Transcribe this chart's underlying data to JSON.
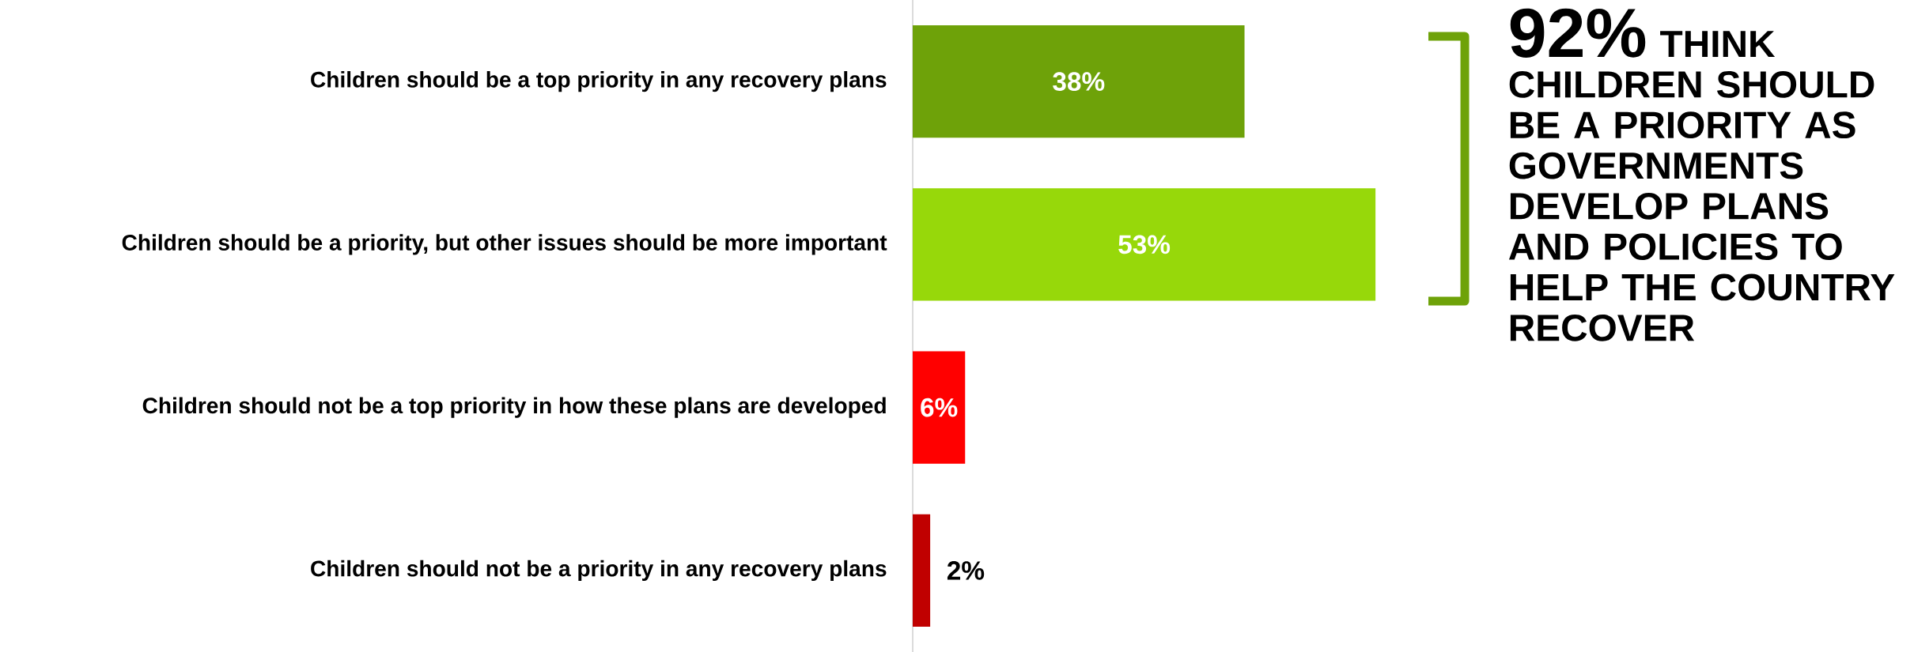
{
  "chart_data": {
    "type": "bar",
    "orientation": "horizontal",
    "categories": [
      "Children should be a top priority in any recovery plans",
      "Children should be a priority, but other issues should be more important",
      "Children should not be a top priority in how these plans are developed",
      "Children should not be a priority in any recovery plans"
    ],
    "values": [
      38,
      53,
      6,
      2
    ],
    "colors": [
      "#6ea209",
      "#97d80a",
      "#ff0000",
      "#c00000"
    ],
    "value_labels": [
      "38%",
      "53%",
      "6%",
      "2%"
    ],
    "annotations": [
      "92%",
      "THINK CHILDREN SHOULD BE A PRIORITY AS GOVERNMENTS DEVELOP PLANS AND POLICIES TO HELP THE COUNTRY RECOVER"
    ]
  }
}
